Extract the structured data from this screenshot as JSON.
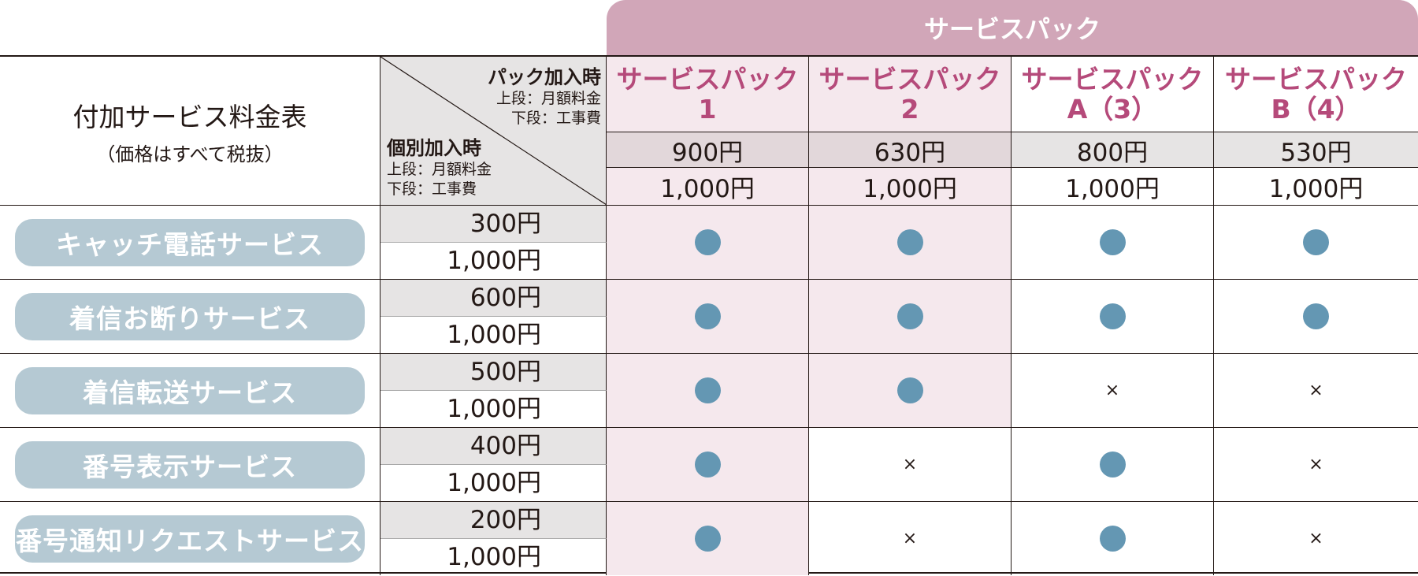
{
  "banner": "サービスパック",
  "title": "付加サービス料金表",
  "subtitle": "（価格はすべて税抜）",
  "pack_header": {
    "title": "パック加入時",
    "line1": "上段：月額料金",
    "line2": "下段：工事費"
  },
  "individual_header": {
    "title": "個別加入時",
    "line1": "上段：月額料金",
    "line2": "下段：工事費"
  },
  "packs": [
    {
      "line1": "サービスパック",
      "line2": "1",
      "monthly": "900円",
      "fee": "1,000円"
    },
    {
      "line1": "サービスパック",
      "line2": "2",
      "monthly": "630円",
      "fee": "1,000円"
    },
    {
      "line1": "サービスパック",
      "line2": "A（3）",
      "monthly": "800円",
      "fee": "1,000円"
    },
    {
      "line1": "サービスパック",
      "line2": "B（4）",
      "monthly": "530円",
      "fee": "1,000円"
    }
  ],
  "services": [
    {
      "name": "キャッチ電話サービス",
      "monthly": "300円",
      "fee": "1,000円",
      "marks": [
        true,
        true,
        true,
        true
      ]
    },
    {
      "name": "着信お断りサービス",
      "monthly": "600円",
      "fee": "1,000円",
      "marks": [
        true,
        true,
        true,
        true
      ]
    },
    {
      "name": "着信転送サービス",
      "monthly": "500円",
      "fee": "1,000円",
      "marks": [
        true,
        true,
        false,
        false
      ]
    },
    {
      "name": "番号表示サービス",
      "monthly": "400円",
      "fee": "1,000円",
      "marks": [
        true,
        false,
        true,
        false
      ]
    },
    {
      "name": "番号通知リクエストサービス",
      "monthly": "200円",
      "fee": "1,000円",
      "marks": [
        true,
        false,
        true,
        false
      ]
    }
  ],
  "cross_symbol": "×",
  "colors": {
    "banner": "#d1a6b8",
    "pack_text": "#b54a7a",
    "pill": "#b5c9d3",
    "dot": "#6497b3",
    "pink": "#f5e8ed",
    "gray": "#e6e4e4"
  }
}
